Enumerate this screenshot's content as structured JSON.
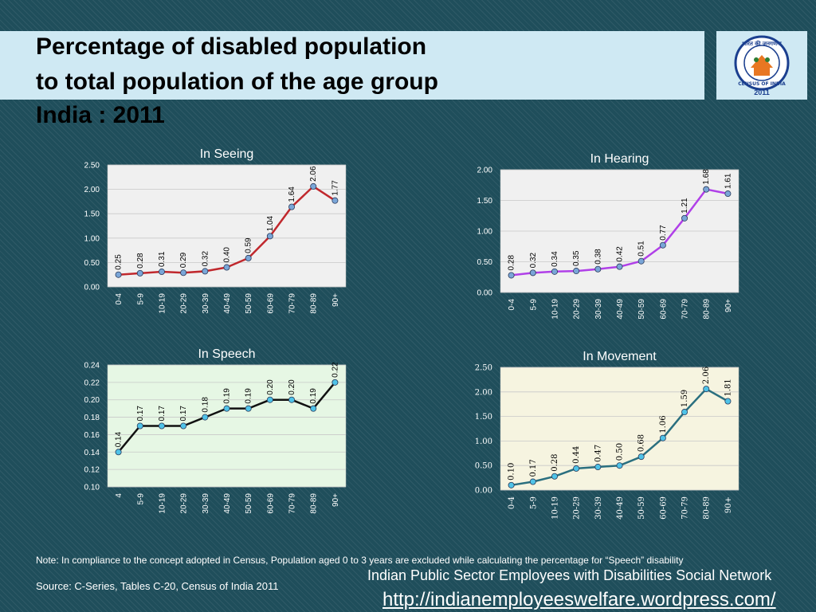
{
  "header": {
    "title_line1": "Percentage of disabled population",
    "title_line2": "to total population of the age group",
    "title_line3": "India : 2011"
  },
  "logo": {
    "top_text": "भारत की जनगणना",
    "bottom_text": "CENSUS OF INDIA",
    "year": "2011"
  },
  "chart_data": [
    {
      "type": "line",
      "title": "In Seeing",
      "categories": [
        "0-4",
        "5-9",
        "10-19",
        "20-29",
        "30-39",
        "40-49",
        "50-59",
        "60-69",
        "70-79",
        "80-89",
        "90+"
      ],
      "values": [
        0.25,
        0.28,
        0.31,
        0.29,
        0.32,
        0.4,
        0.59,
        1.04,
        1.64,
        2.06,
        1.77
      ],
      "labels": [
        "0.25",
        "0.28",
        "0.31",
        "0.29",
        "0.32",
        "0.40",
        "0.59",
        "1.04",
        "1.64",
        "2.06",
        "1.77"
      ],
      "ylim": [
        0,
        2.5
      ],
      "yticks": [
        "0.00",
        "0.50",
        "1.00",
        "1.50",
        "2.00",
        "2.50"
      ],
      "line_color": "#c0282d",
      "marker_color": "#7aa6d8",
      "plot_bg": "#f0f0f0",
      "grid": true
    },
    {
      "type": "line",
      "title": "In Hearing",
      "categories": [
        "0-4",
        "5-9",
        "10-19",
        "20-29",
        "30-39",
        "40-49",
        "50-59",
        "60-69",
        "70-79",
        "80-89",
        "90+"
      ],
      "values": [
        0.28,
        0.32,
        0.34,
        0.35,
        0.38,
        0.42,
        0.51,
        0.77,
        1.21,
        1.68,
        1.61
      ],
      "labels": [
        "0.28",
        "0.32",
        "0.34",
        "0.35",
        "0.38",
        "0.42",
        "0.51",
        "0.77",
        "1.21",
        "1.68",
        "1.61"
      ],
      "ylim": [
        0,
        2.0
      ],
      "yticks": [
        "0.00",
        "0.50",
        "1.00",
        "1.50",
        "2.00"
      ],
      "line_color": "#b040e8",
      "marker_color": "#7aa6d8",
      "plot_bg": "#f0f0f0",
      "grid": true
    },
    {
      "type": "line",
      "title": "In Speech",
      "categories": [
        "4",
        "5-9",
        "10-19",
        "20-29",
        "30-39",
        "40-49",
        "50-59",
        "60-69",
        "70-79",
        "80-89",
        "90+"
      ],
      "values": [
        0.14,
        0.17,
        0.17,
        0.17,
        0.18,
        0.19,
        0.19,
        0.2,
        0.2,
        0.19,
        0.22
      ],
      "labels": [
        "0.14",
        "0.17",
        "0.17",
        "0.17",
        "0.18",
        "0.19",
        "0.19",
        "0.20",
        "0.20",
        "0.19",
        "0.22"
      ],
      "ylim": [
        0.1,
        0.24
      ],
      "yticks": [
        "0.10",
        "0.12",
        "0.14",
        "0.16",
        "0.18",
        "0.20",
        "0.22",
        "0.24"
      ],
      "line_color": "#111111",
      "marker_color": "#4fc3e8",
      "plot_bg": "#e6f7e4",
      "grid": true
    },
    {
      "type": "line",
      "title": "In Movement",
      "categories": [
        "0-4",
        "5-9",
        "10-19",
        "20-29",
        "30-39",
        "40-49",
        "50-59",
        "60-69",
        "70-79",
        "80-89",
        "90+"
      ],
      "values": [
        0.1,
        0.17,
        0.28,
        0.44,
        0.47,
        0.5,
        0.68,
        1.06,
        1.59,
        2.06,
        1.81
      ],
      "labels": [
        "0.10",
        "0.17",
        "0.28",
        "0.44",
        "0.47",
        "0.50",
        "0.68",
        "1.06",
        "1.59",
        "2.06",
        "1.81"
      ],
      "ylim": [
        0,
        2.5
      ],
      "yticks": [
        "0.00",
        "0.50",
        "1.00",
        "1.50",
        "2.00",
        "2.50"
      ],
      "line_color": "#2a6f7f",
      "marker_color": "#4fc3e8",
      "plot_bg": "#f6f4e0",
      "grid": true
    }
  ],
  "footer": {
    "note": "Note: In compliance to the concept adopted in Census, Population aged 0 to 3 years are excluded while calculating the percentage for “Speech” disability",
    "source": "Source: C-Series, Tables C-20, Census of India 2011",
    "network": "Indian Public Sector Employees with Disabilities Social Network",
    "url": "http://indianemployeeswelfare.wordpress.com/"
  },
  "colors": {
    "background": "#1f4e5b",
    "title_bar": "#cfe9f3"
  }
}
